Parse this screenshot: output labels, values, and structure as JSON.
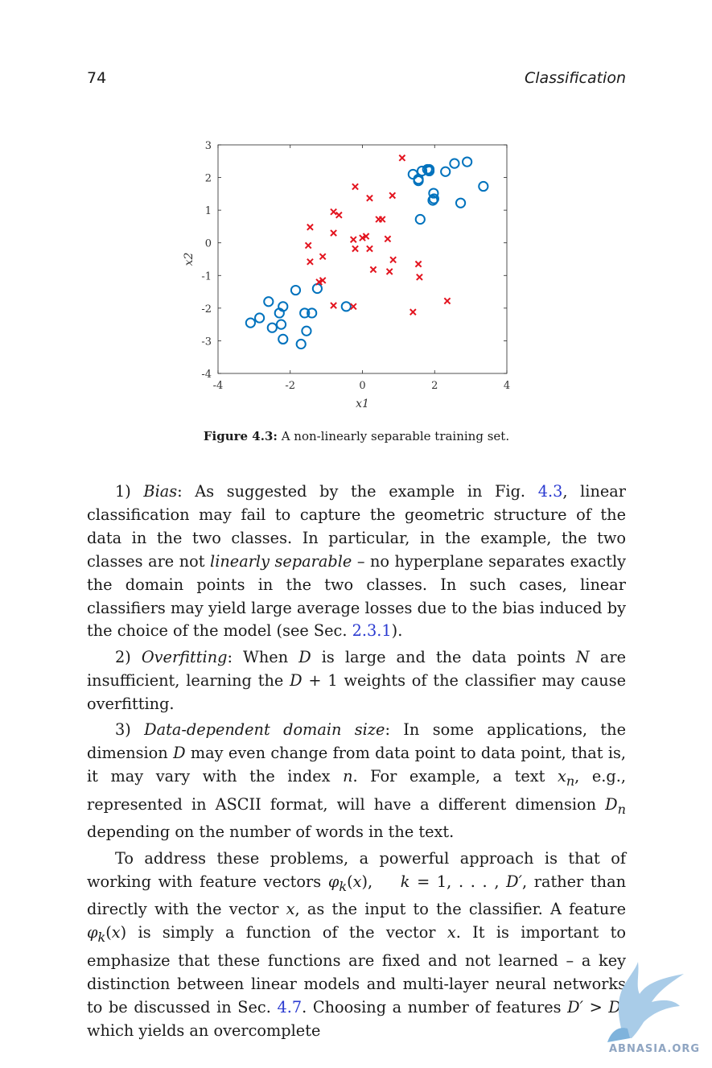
{
  "header": {
    "page_number": "74",
    "running_title": "Classification"
  },
  "figure": {
    "caption_label": "Figure 4.3:",
    "caption_text": " A non-linearly separable training set."
  },
  "chart_data": {
    "type": "scatter",
    "xlabel": "x1",
    "ylabel": "x2",
    "xlim": [
      -4,
      4
    ],
    "ylim": [
      -4,
      3
    ],
    "xticks": [
      -4,
      -2,
      0,
      2,
      4
    ],
    "yticks": [
      3,
      2,
      1,
      0,
      -1,
      -2,
      -3,
      -4
    ],
    "grid": false,
    "series": [
      {
        "marker": "circle",
        "color": "#0072bd",
        "points": [
          [
            -3.1,
            -2.45
          ],
          [
            -2.85,
            -2.3
          ],
          [
            -2.6,
            -1.8
          ],
          [
            -2.5,
            -2.6
          ],
          [
            -2.3,
            -2.15
          ],
          [
            -2.25,
            -2.5
          ],
          [
            -2.2,
            -1.95
          ],
          [
            -2.2,
            -2.95
          ],
          [
            -1.85,
            -1.45
          ],
          [
            -1.7,
            -3.1
          ],
          [
            -1.6,
            -2.15
          ],
          [
            -1.55,
            -2.7
          ],
          [
            -1.4,
            -2.15
          ],
          [
            -1.25,
            -1.4
          ],
          [
            -0.45,
            -1.95
          ],
          [
            1.4,
            2.1
          ],
          [
            1.55,
            1.9
          ],
          [
            1.55,
            1.95
          ],
          [
            1.65,
            2.2
          ],
          [
            1.6,
            0.72
          ],
          [
            1.8,
            2.25
          ],
          [
            1.85,
            2.2
          ],
          [
            1.85,
            2.25
          ],
          [
            1.95,
            1.3
          ],
          [
            1.97,
            1.52
          ],
          [
            1.98,
            1.35
          ],
          [
            2.3,
            2.18
          ],
          [
            2.55,
            2.43
          ],
          [
            2.72,
            1.22
          ],
          [
            2.9,
            2.48
          ],
          [
            3.35,
            1.73
          ]
        ]
      },
      {
        "marker": "cross",
        "color": "#e3141f",
        "points": [
          [
            1.1,
            2.6
          ],
          [
            -0.2,
            1.72
          ],
          [
            0.2,
            1.37
          ],
          [
            0.83,
            1.45
          ],
          [
            -0.8,
            0.95
          ],
          [
            -0.65,
            0.85
          ],
          [
            0.45,
            0.72
          ],
          [
            0.55,
            0.72
          ],
          [
            -1.45,
            0.48
          ],
          [
            -0.8,
            0.3
          ],
          [
            -0.25,
            0.1
          ],
          [
            0.0,
            0.15
          ],
          [
            0.1,
            0.2
          ],
          [
            0.7,
            0.12
          ],
          [
            -1.5,
            -0.08
          ],
          [
            -0.2,
            -0.18
          ],
          [
            0.2,
            -0.18
          ],
          [
            -1.45,
            -0.58
          ],
          [
            -1.1,
            -0.42
          ],
          [
            0.85,
            -0.52
          ],
          [
            0.3,
            -0.82
          ],
          [
            0.75,
            -0.88
          ],
          [
            1.55,
            -0.65
          ],
          [
            1.58,
            -1.05
          ],
          [
            -1.2,
            -1.2
          ],
          [
            -1.1,
            -1.15
          ],
          [
            -0.8,
            -1.92
          ],
          [
            -0.25,
            -1.95
          ],
          [
            2.35,
            -1.78
          ],
          [
            1.4,
            -2.12
          ]
        ]
      }
    ]
  },
  "body": {
    "p1": {
      "num": "1) ",
      "term": "Bias",
      "t1": ": As suggested by the example in Fig. ",
      "ref": "4.3",
      "t2": ", linear classification may fail to capture the geometric structure of the data in the two classes. In particular, in the example, the two classes are not ",
      "em": "linearly separable",
      "t3": " – no hyperplane separates exactly the domain points in the two classes. In such cases, linear classifiers may yield large average losses due to the bias induced by the choice of the model (see Sec. ",
      "ref2": "2.3.1",
      "t4": ")."
    },
    "p2": {
      "num": "2) ",
      "term": "Overfitting",
      "t1": ": When ",
      "m1": "D",
      "t2": " is large and the data points ",
      "m2": "N",
      "t3": " are insufficient, learning the ",
      "m3": "D",
      "t4": " + 1 weights of the classifier may cause overfitting."
    },
    "p3": {
      "num": "3) ",
      "term": "Data-dependent domain size",
      "t1": ": In some applications, the dimension ",
      "m1": "D",
      "t2": " may even change from data point to data point, that is, it may vary with the index ",
      "m2": "n",
      "t3": ". For example, a text ",
      "m3": "x",
      "s3": "n",
      "t4": ", e.g., represented in ASCII format, will have a different dimension ",
      "m4": "D",
      "s4": "n",
      "t5": " depending on the number of words in the text."
    },
    "p4": {
      "t1": "To address these problems, a powerful approach is that of working with feature vectors ",
      "m1": "φ",
      "s1": "k",
      "t2": "(",
      "m2": "x",
      "t3": "),    ",
      "m3": "k",
      "t4": " = 1, . . . , ",
      "m4": "D′",
      "t5": ", rather than directly with the vector ",
      "m5": "x",
      "t6": ", as the input to the classifier. A feature ",
      "m6": "φ",
      "s6": "k",
      "t7": "(",
      "m7": "x",
      "t8": ") is simply a function of the vector ",
      "m8": "x",
      "t9": ". It is important to emphasize that these functions are fixed and not learned – a key distinction between linear models and multi-layer neural networks to be discussed in Sec. ",
      "ref": "4.7",
      "t10": ". Choosing a number of features ",
      "m9": "D′",
      "t11": " > ",
      "m10": "D",
      "t12": ", which yields an overcomplete"
    }
  },
  "watermark": {
    "text": "ABNASIA.ORG"
  }
}
